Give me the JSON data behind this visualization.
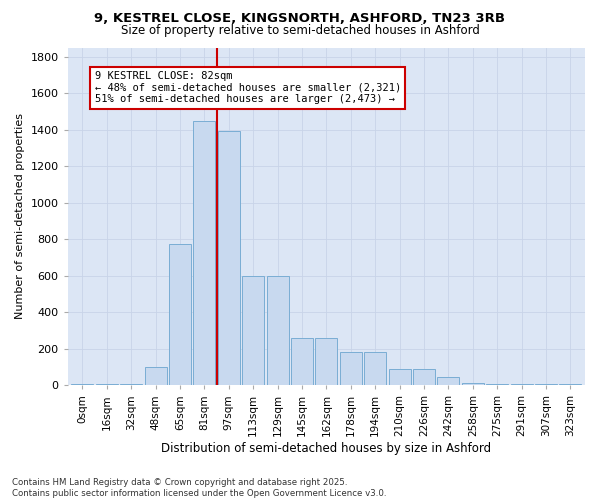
{
  "title_line1": "9, KESTREL CLOSE, KINGSNORTH, ASHFORD, TN23 3RB",
  "title_line2": "Size of property relative to semi-detached houses in Ashford",
  "xlabel": "Distribution of semi-detached houses by size in Ashford",
  "ylabel": "Number of semi-detached properties",
  "bar_labels": [
    "0sqm",
    "16sqm",
    "32sqm",
    "48sqm",
    "65sqm",
    "81sqm",
    "97sqm",
    "113sqm",
    "129sqm",
    "145sqm",
    "162sqm",
    "178sqm",
    "194sqm",
    "210sqm",
    "226sqm",
    "242sqm",
    "258sqm",
    "275sqm",
    "291sqm",
    "307sqm",
    "323sqm"
  ],
  "bar_heights": [
    5,
    5,
    5,
    100,
    775,
    1450,
    1390,
    600,
    600,
    260,
    260,
    185,
    185,
    90,
    90,
    45,
    10,
    5,
    5,
    5,
    5
  ],
  "bar_color": "#c8d9ef",
  "bar_edge_color": "#7aadd4",
  "vline_color": "#cc0000",
  "vline_label": "9 KESTREL CLOSE: 82sqm",
  "annotation_smaller": "← 48% of semi-detached houses are smaller (2,321)",
  "annotation_larger": "51% of semi-detached houses are larger (2,473) →",
  "annotation_box_color": "#cc0000",
  "ylim": [
    0,
    1850
  ],
  "yticks": [
    0,
    200,
    400,
    600,
    800,
    1000,
    1200,
    1400,
    1600,
    1800
  ],
  "grid_color": "#c8d4e8",
  "bg_color": "#dce6f5",
  "fig_color": "#ffffff",
  "footnote": "Contains HM Land Registry data © Crown copyright and database right 2025.\nContains public sector information licensed under the Open Government Licence v3.0."
}
